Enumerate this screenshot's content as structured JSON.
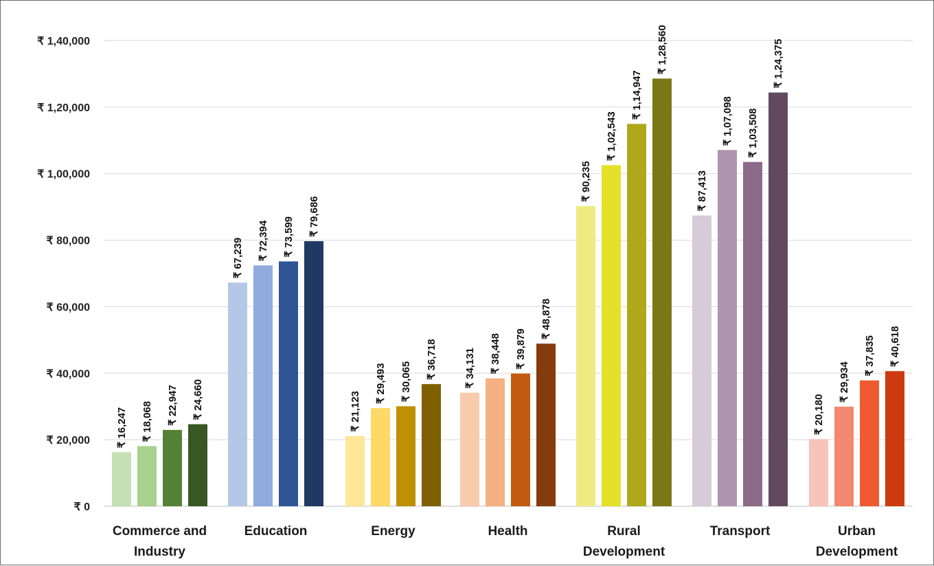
{
  "chart_data": {
    "type": "bar",
    "categories": [
      "Commerce and Industry",
      "Education",
      "Energy",
      "Health",
      "Rural Development",
      "Transport",
      "Urban Development"
    ],
    "category_lines": [
      [
        "Commerce and",
        "Industry"
      ],
      [
        "Education"
      ],
      [
        "Energy"
      ],
      [
        "Health"
      ],
      [
        "Rural",
        "Development"
      ],
      [
        "Transport"
      ],
      [
        "Urban",
        "Development"
      ]
    ],
    "values": [
      [
        16247,
        18068,
        22947,
        24660
      ],
      [
        67239,
        72394,
        73599,
        79686
      ],
      [
        21123,
        29493,
        30065,
        36718
      ],
      [
        34131,
        38448,
        39879,
        48878
      ],
      [
        90235,
        102543,
        114947,
        128560
      ],
      [
        87413,
        107098,
        103508,
        124375
      ],
      [
        20180,
        29934,
        37835,
        40618
      ]
    ],
    "data_labels": [
      [
        "₹ 16,247",
        "₹ 18,068",
        "₹ 22,947",
        "₹ 24,660"
      ],
      [
        "₹ 67,239",
        "₹ 72,394",
        "₹ 73,599",
        "₹ 79,686"
      ],
      [
        "₹ 21,123",
        "₹ 29,493",
        "₹ 30,065",
        "₹ 36,718"
      ],
      [
        "₹ 34,131",
        "₹ 38,448",
        "₹ 39,879",
        "₹ 48,878"
      ],
      [
        "₹ 90,235",
        "₹ 1,02,543",
        "₹ 1,14,947",
        "₹ 1,28,560"
      ],
      [
        "₹ 87,413",
        "₹ 1,07,098",
        "₹ 1,03,508",
        "₹ 1,24,375"
      ],
      [
        "₹ 20,180",
        "₹ 29,934",
        "₹ 37,835",
        "₹ 40,618"
      ]
    ],
    "colors": [
      [
        "#c5e0b4",
        "#a9d18e",
        "#548235",
        "#385723"
      ],
      [
        "#b4c7e7",
        "#8faadc",
        "#2f5597",
        "#203864"
      ],
      [
        "#ffe699",
        "#ffd966",
        "#bf9000",
        "#7f6000"
      ],
      [
        "#f8cbad",
        "#f4b183",
        "#c55a11",
        "#843c0c"
      ],
      [
        "#eeeb83",
        "#e5e12a",
        "#b0a81b",
        "#7a7815"
      ],
      [
        "#d6cbd8",
        "#ae95ad",
        "#8c6a8a",
        "#614a60"
      ],
      [
        "#f8c3b8",
        "#f4876f",
        "#f05a33",
        "#cc3a11"
      ]
    ],
    "y_ticks": [
      "₹ 0",
      "₹ 20,000",
      "₹ 40,000",
      "₹ 60,000",
      "₹ 80,000",
      "₹ 1,00,000",
      "₹ 1,20,000",
      "₹ 1,40,000"
    ],
    "y_tick_values": [
      0,
      20000,
      40000,
      60000,
      80000,
      100000,
      120000,
      140000
    ],
    "ylim": [
      0,
      140000
    ],
    "title": "",
    "xlabel": "",
    "ylabel": "",
    "grid": true,
    "legend": "none"
  }
}
